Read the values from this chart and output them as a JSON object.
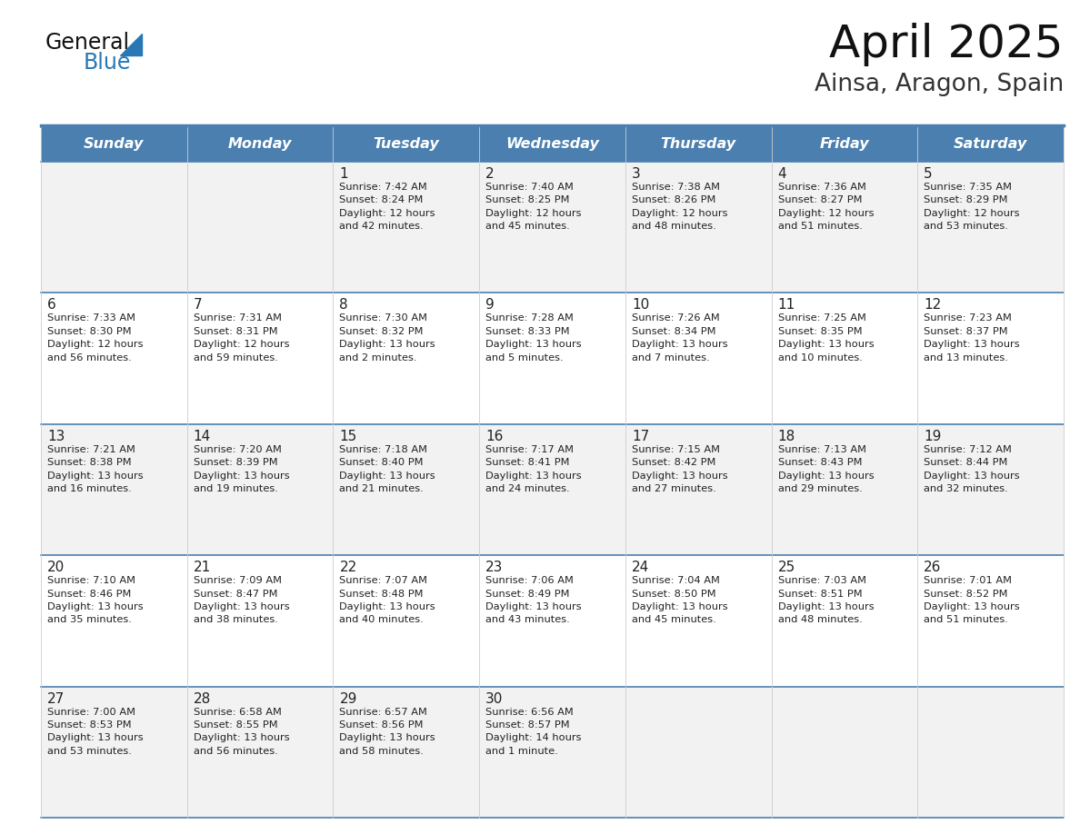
{
  "title": "April 2025",
  "subtitle": "Ainsa, Aragon, Spain",
  "days_of_week": [
    "Sunday",
    "Monday",
    "Tuesday",
    "Wednesday",
    "Thursday",
    "Friday",
    "Saturday"
  ],
  "header_bg": "#4a7faf",
  "header_text": "#ffffff",
  "row_bg_light": "#f2f2f2",
  "row_bg_white": "#ffffff",
  "separator_color": "#4a7faf",
  "text_color": "#222222",
  "calendar_data": [
    [
      {
        "day": "",
        "info": ""
      },
      {
        "day": "",
        "info": ""
      },
      {
        "day": "1",
        "info": "Sunrise: 7:42 AM\nSunset: 8:24 PM\nDaylight: 12 hours\nand 42 minutes."
      },
      {
        "day": "2",
        "info": "Sunrise: 7:40 AM\nSunset: 8:25 PM\nDaylight: 12 hours\nand 45 minutes."
      },
      {
        "day": "3",
        "info": "Sunrise: 7:38 AM\nSunset: 8:26 PM\nDaylight: 12 hours\nand 48 minutes."
      },
      {
        "day": "4",
        "info": "Sunrise: 7:36 AM\nSunset: 8:27 PM\nDaylight: 12 hours\nand 51 minutes."
      },
      {
        "day": "5",
        "info": "Sunrise: 7:35 AM\nSunset: 8:29 PM\nDaylight: 12 hours\nand 53 minutes."
      }
    ],
    [
      {
        "day": "6",
        "info": "Sunrise: 7:33 AM\nSunset: 8:30 PM\nDaylight: 12 hours\nand 56 minutes."
      },
      {
        "day": "7",
        "info": "Sunrise: 7:31 AM\nSunset: 8:31 PM\nDaylight: 12 hours\nand 59 minutes."
      },
      {
        "day": "8",
        "info": "Sunrise: 7:30 AM\nSunset: 8:32 PM\nDaylight: 13 hours\nand 2 minutes."
      },
      {
        "day": "9",
        "info": "Sunrise: 7:28 AM\nSunset: 8:33 PM\nDaylight: 13 hours\nand 5 minutes."
      },
      {
        "day": "10",
        "info": "Sunrise: 7:26 AM\nSunset: 8:34 PM\nDaylight: 13 hours\nand 7 minutes."
      },
      {
        "day": "11",
        "info": "Sunrise: 7:25 AM\nSunset: 8:35 PM\nDaylight: 13 hours\nand 10 minutes."
      },
      {
        "day": "12",
        "info": "Sunrise: 7:23 AM\nSunset: 8:37 PM\nDaylight: 13 hours\nand 13 minutes."
      }
    ],
    [
      {
        "day": "13",
        "info": "Sunrise: 7:21 AM\nSunset: 8:38 PM\nDaylight: 13 hours\nand 16 minutes."
      },
      {
        "day": "14",
        "info": "Sunrise: 7:20 AM\nSunset: 8:39 PM\nDaylight: 13 hours\nand 19 minutes."
      },
      {
        "day": "15",
        "info": "Sunrise: 7:18 AM\nSunset: 8:40 PM\nDaylight: 13 hours\nand 21 minutes."
      },
      {
        "day": "16",
        "info": "Sunrise: 7:17 AM\nSunset: 8:41 PM\nDaylight: 13 hours\nand 24 minutes."
      },
      {
        "day": "17",
        "info": "Sunrise: 7:15 AM\nSunset: 8:42 PM\nDaylight: 13 hours\nand 27 minutes."
      },
      {
        "day": "18",
        "info": "Sunrise: 7:13 AM\nSunset: 8:43 PM\nDaylight: 13 hours\nand 29 minutes."
      },
      {
        "day": "19",
        "info": "Sunrise: 7:12 AM\nSunset: 8:44 PM\nDaylight: 13 hours\nand 32 minutes."
      }
    ],
    [
      {
        "day": "20",
        "info": "Sunrise: 7:10 AM\nSunset: 8:46 PM\nDaylight: 13 hours\nand 35 minutes."
      },
      {
        "day": "21",
        "info": "Sunrise: 7:09 AM\nSunset: 8:47 PM\nDaylight: 13 hours\nand 38 minutes."
      },
      {
        "day": "22",
        "info": "Sunrise: 7:07 AM\nSunset: 8:48 PM\nDaylight: 13 hours\nand 40 minutes."
      },
      {
        "day": "23",
        "info": "Sunrise: 7:06 AM\nSunset: 8:49 PM\nDaylight: 13 hours\nand 43 minutes."
      },
      {
        "day": "24",
        "info": "Sunrise: 7:04 AM\nSunset: 8:50 PM\nDaylight: 13 hours\nand 45 minutes."
      },
      {
        "day": "25",
        "info": "Sunrise: 7:03 AM\nSunset: 8:51 PM\nDaylight: 13 hours\nand 48 minutes."
      },
      {
        "day": "26",
        "info": "Sunrise: 7:01 AM\nSunset: 8:52 PM\nDaylight: 13 hours\nand 51 minutes."
      }
    ],
    [
      {
        "day": "27",
        "info": "Sunrise: 7:00 AM\nSunset: 8:53 PM\nDaylight: 13 hours\nand 53 minutes."
      },
      {
        "day": "28",
        "info": "Sunrise: 6:58 AM\nSunset: 8:55 PM\nDaylight: 13 hours\nand 56 minutes."
      },
      {
        "day": "29",
        "info": "Sunrise: 6:57 AM\nSunset: 8:56 PM\nDaylight: 13 hours\nand 58 minutes."
      },
      {
        "day": "30",
        "info": "Sunrise: 6:56 AM\nSunset: 8:57 PM\nDaylight: 14 hours\nand 1 minute."
      },
      {
        "day": "",
        "info": ""
      },
      {
        "day": "",
        "info": ""
      },
      {
        "day": "",
        "info": ""
      }
    ]
  ],
  "fig_width": 11.88,
  "fig_height": 9.18,
  "dpi": 100
}
